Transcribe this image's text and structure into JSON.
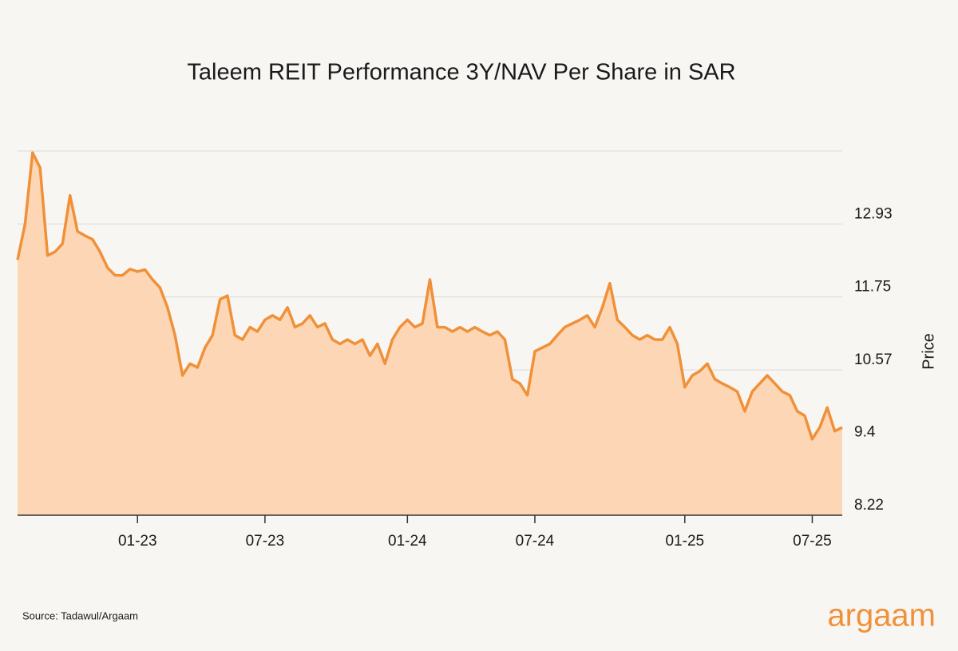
{
  "chart_data": {
    "type": "area",
    "title": "Taleem REIT Performance 3Y/NAV Per Share in SAR",
    "y_label": "Price",
    "source": "Source: Tadawul/Argaam",
    "logo": "argaam",
    "color": "#f0913a",
    "fill": "#fdd7b5",
    "grid": true,
    "ylim": [
      8.22,
      14.11
    ],
    "yticks": [
      8.22,
      9.4,
      10.57,
      11.75,
      12.93
    ],
    "categories": [
      null,
      null,
      null,
      null,
      null,
      null,
      null,
      null,
      null,
      null,
      null,
      null,
      null,
      null,
      null,
      null,
      "01-23",
      null,
      null,
      null,
      null,
      null,
      null,
      null,
      null,
      null,
      null,
      null,
      null,
      null,
      null,
      null,
      null,
      "07-23",
      null,
      null,
      null,
      null,
      null,
      null,
      null,
      null,
      null,
      null,
      null,
      null,
      null,
      null,
      null,
      null,
      null,
      null,
      "01-24",
      null,
      null,
      null,
      null,
      null,
      null,
      null,
      null,
      null,
      null,
      null,
      null,
      null,
      null,
      null,
      null,
      "07-24",
      null,
      null,
      null,
      null,
      null,
      null,
      null,
      null,
      null,
      null,
      null,
      null,
      null,
      null,
      null,
      null,
      null,
      null,
      null,
      "01-25",
      null,
      null,
      null,
      null,
      null,
      null,
      null,
      null,
      null,
      null,
      null,
      null,
      null,
      null,
      null,
      null,
      "07-25",
      null,
      null,
      null,
      null
    ],
    "values": [
      12.35,
      12.93,
      14.08,
      13.84,
      12.42,
      12.48,
      12.61,
      13.39,
      12.81,
      12.74,
      12.68,
      12.48,
      12.22,
      12.1,
      12.1,
      12.2,
      12.16,
      12.19,
      12.03,
      11.9,
      11.58,
      11.13,
      10.48,
      10.67,
      10.61,
      10.93,
      11.13,
      11.71,
      11.77,
      11.13,
      11.06,
      11.26,
      11.19,
      11.38,
      11.45,
      11.38,
      11.58,
      11.26,
      11.32,
      11.45,
      11.26,
      11.32,
      11.06,
      10.99,
      11.06,
      10.99,
      11.06,
      10.8,
      10.99,
      10.67,
      11.06,
      11.26,
      11.38,
      11.26,
      11.32,
      12.03,
      11.26,
      11.26,
      11.19,
      11.26,
      11.19,
      11.26,
      11.19,
      11.13,
      11.19,
      11.06,
      10.42,
      10.35,
      10.16,
      10.87,
      10.93,
      10.99,
      11.13,
      11.26,
      11.32,
      11.38,
      11.45,
      11.26,
      11.58,
      11.97,
      11.38,
      11.26,
      11.13,
      11.06,
      11.13,
      11.06,
      11.06,
      11.26,
      10.99,
      10.29,
      10.48,
      10.55,
      10.67,
      10.42,
      10.35,
      10.29,
      10.22,
      9.9,
      10.22,
      10.35,
      10.48,
      10.35,
      10.22,
      10.16,
      9.9,
      9.83,
      9.45,
      9.64,
      9.96,
      9.58,
      9.64
    ]
  }
}
